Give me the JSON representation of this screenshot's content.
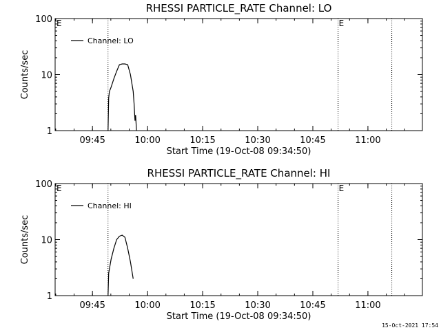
{
  "timestamp": "15-Oct-2021 17:54",
  "chart_data": [
    {
      "type": "line",
      "title": "RHESSI PARTICLE_RATE Channel: LO",
      "xlabel": "Start Time (19-Oct-08 09:34:50)",
      "ylabel": "Counts/sec",
      "yscale": "log",
      "xlim": [
        "09:34:50",
        "11:14:50"
      ],
      "ylim": [
        1,
        100
      ],
      "x_tick_labels": [
        "09:45",
        "10:00",
        "10:15",
        "10:30",
        "10:45",
        "11:00"
      ],
      "y_tick_labels": [
        "1",
        "10",
        "100"
      ],
      "legend": {
        "position": "top-left",
        "entries": [
          "Channel: LO"
        ]
      },
      "markers": [
        {
          "time": "09:49:14",
          "label": ""
        },
        {
          "time": "10:51:53",
          "label": "E"
        },
        {
          "time": "11:06:30",
          "label": ""
        }
      ],
      "start_marker_label": "E",
      "series": [
        {
          "name": "Channel: LO",
          "x": [
            "09:49:14",
            "09:49:25",
            "09:49:37",
            "09:50:05",
            "09:50:50",
            "09:51:35",
            "09:52:20",
            "09:53:05",
            "09:53:50",
            "09:54:35",
            "09:55:20",
            "09:56:05",
            "09:56:20",
            "09:56:35",
            "09:56:45",
            "09:57:00"
          ],
          "y": [
            1,
            3.8,
            5,
            6,
            8.5,
            11.5,
            15,
            15.5,
            15.5,
            15,
            10,
            5,
            3,
            1.5,
            1.9,
            1
          ]
        }
      ]
    },
    {
      "type": "line",
      "title": "RHESSI PARTICLE_RATE Channel: HI",
      "xlabel": "Start Time (19-Oct-08 09:34:50)",
      "ylabel": "Counts/sec",
      "yscale": "log",
      "xlim": [
        "09:34:50",
        "11:14:50"
      ],
      "ylim": [
        1,
        100
      ],
      "x_tick_labels": [
        "09:45",
        "10:00",
        "10:15",
        "10:30",
        "10:45",
        "11:00"
      ],
      "y_tick_labels": [
        "1",
        "10",
        "100"
      ],
      "legend": {
        "position": "top-left",
        "entries": [
          "Channel: HI"
        ]
      },
      "markers": [
        {
          "time": "09:49:14",
          "label": ""
        },
        {
          "time": "10:51:53",
          "label": "E"
        },
        {
          "time": "11:06:30",
          "label": ""
        }
      ],
      "start_marker_label": "E",
      "series": [
        {
          "name": "Channel: HI",
          "x": [
            "09:49:14",
            "09:49:25",
            "09:49:37",
            "09:50:05",
            "09:50:50",
            "09:51:35",
            "09:52:20",
            "09:53:05",
            "09:53:50",
            "09:54:35",
            "09:55:20",
            "09:56:05"
          ],
          "y": [
            1,
            2.5,
            3,
            4.5,
            7,
            10,
            11.5,
            12,
            11,
            7,
            4,
            2
          ]
        }
      ]
    }
  ]
}
